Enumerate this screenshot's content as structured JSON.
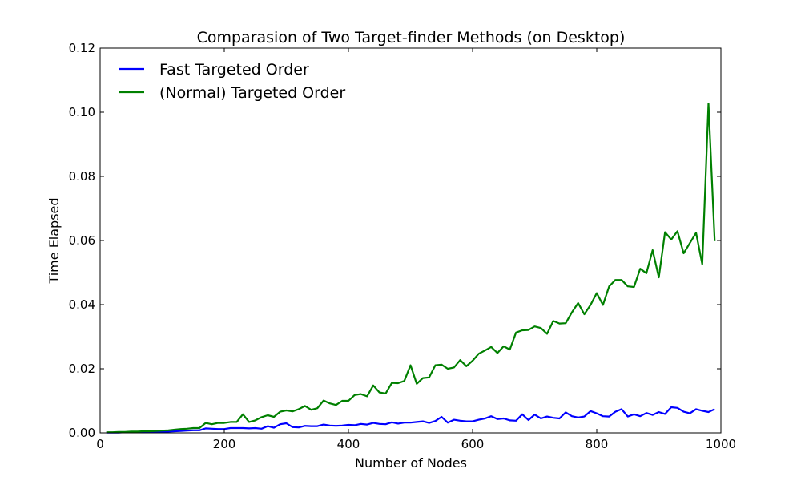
{
  "chart_data": {
    "type": "line",
    "title": "Comparasion of Two Target-finder Methods (on Desktop)",
    "xlabel": "Number of Nodes",
    "ylabel": "Time Elapsed",
    "xlim": [
      0,
      1000
    ],
    "ylim": [
      0.0,
      0.12
    ],
    "xticks": [
      "0",
      "200",
      "400",
      "600",
      "800",
      "1000"
    ],
    "yticks": [
      "0.00",
      "0.02",
      "0.04",
      "0.06",
      "0.08",
      "0.10",
      "0.12"
    ],
    "legend_position": "top-left",
    "grid": false,
    "x": [
      10,
      20,
      30,
      40,
      50,
      60,
      70,
      80,
      90,
      100,
      110,
      120,
      130,
      140,
      150,
      160,
      170,
      180,
      190,
      200,
      210,
      220,
      230,
      240,
      250,
      260,
      270,
      280,
      290,
      300,
      310,
      320,
      330,
      340,
      350,
      360,
      370,
      380,
      390,
      400,
      410,
      420,
      430,
      440,
      450,
      460,
      470,
      480,
      490,
      500,
      510,
      520,
      530,
      540,
      550,
      560,
      570,
      580,
      590,
      600,
      610,
      620,
      630,
      640,
      650,
      660,
      670,
      680,
      690,
      700,
      710,
      720,
      730,
      740,
      750,
      760,
      770,
      780,
      790,
      800,
      810,
      820,
      830,
      840,
      850,
      860,
      870,
      880,
      890,
      900,
      910,
      920,
      930,
      940,
      950,
      960,
      970,
      980,
      990
    ],
    "series": [
      {
        "name": "Fast Targeted Order",
        "color": "#0000ff",
        "values": [
          0.0001,
          0.0001,
          0.0001,
          0.0002,
          0.0002,
          0.0002,
          0.0003,
          0.0003,
          0.0003,
          0.0004,
          0.0004,
          0.0005,
          0.0006,
          0.0007,
          0.0008,
          0.0008,
          0.0014,
          0.0013,
          0.0012,
          0.0012,
          0.0015,
          0.0015,
          0.0015,
          0.0014,
          0.0015,
          0.0013,
          0.0021,
          0.0016,
          0.0027,
          0.003,
          0.0018,
          0.0017,
          0.0022,
          0.0021,
          0.0021,
          0.0026,
          0.0023,
          0.0022,
          0.0023,
          0.0025,
          0.0024,
          0.0028,
          0.0026,
          0.0031,
          0.0028,
          0.0027,
          0.0033,
          0.0029,
          0.0032,
          0.0032,
          0.0034,
          0.0036,
          0.0031,
          0.0037,
          0.005,
          0.0032,
          0.0041,
          0.0038,
          0.0036,
          0.0036,
          0.0041,
          0.0045,
          0.0052,
          0.0043,
          0.0045,
          0.0039,
          0.0038,
          0.0058,
          0.004,
          0.0057,
          0.0045,
          0.0051,
          0.0047,
          0.0045,
          0.0064,
          0.0052,
          0.0048,
          0.0051,
          0.0068,
          0.0061,
          0.0052,
          0.0051,
          0.0066,
          0.0074,
          0.0051,
          0.0058,
          0.0052,
          0.0062,
          0.0056,
          0.0065,
          0.0059,
          0.008,
          0.0078,
          0.0066,
          0.0061,
          0.0074,
          0.0069,
          0.0065,
          0.0074
        ]
      },
      {
        "name": "(Normal) Targeted Order",
        "color": "#008000",
        "values": [
          0.0002,
          0.0002,
          0.0003,
          0.0003,
          0.0004,
          0.0004,
          0.0005,
          0.0005,
          0.0006,
          0.0007,
          0.0008,
          0.001,
          0.0012,
          0.0013,
          0.0015,
          0.0015,
          0.0031,
          0.0027,
          0.0031,
          0.0031,
          0.0034,
          0.0034,
          0.0058,
          0.0034,
          0.0039,
          0.0049,
          0.0055,
          0.005,
          0.0066,
          0.007,
          0.0067,
          0.0074,
          0.0084,
          0.0072,
          0.0077,
          0.0101,
          0.0092,
          0.0087,
          0.01,
          0.01,
          0.0118,
          0.0121,
          0.0114,
          0.0148,
          0.0126,
          0.0123,
          0.0156,
          0.0155,
          0.0162,
          0.0211,
          0.0153,
          0.0171,
          0.0173,
          0.0211,
          0.0213,
          0.02,
          0.0204,
          0.0227,
          0.0208,
          0.0225,
          0.0247,
          0.0257,
          0.0268,
          0.0249,
          0.027,
          0.026,
          0.0313,
          0.032,
          0.0321,
          0.0332,
          0.0327,
          0.0309,
          0.0349,
          0.0341,
          0.0342,
          0.0376,
          0.0405,
          0.037,
          0.0399,
          0.0436,
          0.0399,
          0.0457,
          0.0477,
          0.0477,
          0.0457,
          0.0455,
          0.0512,
          0.0498,
          0.057,
          0.0485,
          0.0626,
          0.0603,
          0.0629,
          0.056,
          0.0592,
          0.0624,
          0.0526,
          0.1027,
          0.0598
        ]
      }
    ]
  }
}
